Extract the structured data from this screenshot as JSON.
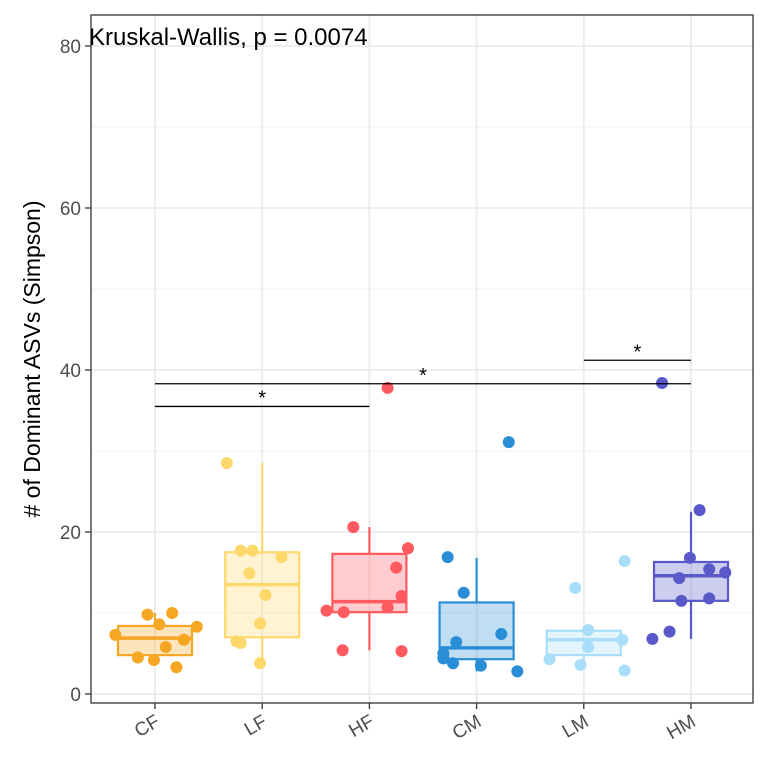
{
  "chart_data": {
    "type": "box",
    "title": "",
    "annotation": "Kruskal-Wallis, p = 0.0074",
    "xlabel": "",
    "ylabel": "# of Dominant ASVs (Simpson)",
    "ylim": [
      -1,
      84
    ],
    "yticks": [
      0,
      20,
      40,
      60,
      80
    ],
    "grid": true,
    "legend": "none",
    "categories": [
      "CF",
      "LF",
      "HF",
      "CM",
      "LM",
      "HM"
    ],
    "series": [
      {
        "name": "CF",
        "color": "#F5A623",
        "box": {
          "min": 4.2,
          "q1": 4.8,
          "median": 6.9,
          "q3": 8.4,
          "max": 10
        },
        "points": [
          {
            "dx": -0.37,
            "y": 7.3
          },
          {
            "dx": -0.07,
            "y": 9.8
          },
          {
            "dx": 0.04,
            "y": 8.6
          },
          {
            "dx": 0.16,
            "y": 10
          },
          {
            "dx": 0.27,
            "y": 6.7
          },
          {
            "dx": 0.39,
            "y": 8.3
          },
          {
            "dx": -0.16,
            "y": 4.5
          },
          {
            "dx": -0.01,
            "y": 4.2
          },
          {
            "dx": 0.1,
            "y": 5.8
          },
          {
            "dx": 0.2,
            "y": 3.3
          }
        ]
      },
      {
        "name": "LF",
        "color": "#FFD86B",
        "box": {
          "min": 3.8,
          "q1": 7,
          "median": 13.5,
          "q3": 17.5,
          "max": 28.5
        },
        "points": [
          {
            "dx": -0.33,
            "y": 28.5
          },
          {
            "dx": -0.2,
            "y": 17.7
          },
          {
            "dx": -0.09,
            "y": 17.7
          },
          {
            "dx": 0.18,
            "y": 16.9
          },
          {
            "dx": -0.12,
            "y": 14.9
          },
          {
            "dx": 0.03,
            "y": 12.2
          },
          {
            "dx": -0.02,
            "y": 8.7
          },
          {
            "dx": -0.24,
            "y": 6.5
          },
          {
            "dx": -0.2,
            "y": 6.3
          },
          {
            "dx": -0.02,
            "y": 3.8
          }
        ]
      },
      {
        "name": "HF",
        "color": "#FF5A5F",
        "box": {
          "min": 5.4,
          "q1": 10.1,
          "median": 11.4,
          "q3": 17.3,
          "max": 20.6
        },
        "points": [
          {
            "dx": 0.17,
            "y": 37.8
          },
          {
            "dx": -0.15,
            "y": 20.6
          },
          {
            "dx": 0.36,
            "y": 18
          },
          {
            "dx": 0.25,
            "y": 15.6
          },
          {
            "dx": 0.3,
            "y": 12.1
          },
          {
            "dx": 0.17,
            "y": 10.7
          },
          {
            "dx": -0.4,
            "y": 10.3
          },
          {
            "dx": -0.24,
            "y": 10.1
          },
          {
            "dx": -0.25,
            "y": 5.4
          },
          {
            "dx": 0.3,
            "y": 5.3
          }
        ]
      },
      {
        "name": "CM",
        "color": "#2A8ED6",
        "box": {
          "min": 2.8,
          "q1": 4.3,
          "median": 5.7,
          "q3": 11.3,
          "max": 16.8
        },
        "points": [
          {
            "dx": 0.3,
            "y": 31.1
          },
          {
            "dx": -0.27,
            "y": 16.9
          },
          {
            "dx": -0.12,
            "y": 12.5
          },
          {
            "dx": 0.23,
            "y": 7.4
          },
          {
            "dx": -0.19,
            "y": 6.4
          },
          {
            "dx": -0.31,
            "y": 5
          },
          {
            "dx": -0.31,
            "y": 4.4
          },
          {
            "dx": -0.22,
            "y": 3.8
          },
          {
            "dx": 0.04,
            "y": 3.5
          },
          {
            "dx": 0.38,
            "y": 2.8
          }
        ]
      },
      {
        "name": "LM",
        "color": "#A9DEFA",
        "box": {
          "min": 3.7,
          "q1": 4.8,
          "median": 6.7,
          "q3": 7.8,
          "max": 8
        },
        "points": [
          {
            "dx": 0.38,
            "y": 16.4
          },
          {
            "dx": -0.08,
            "y": 13.1
          },
          {
            "dx": 0.04,
            "y": 7.9
          },
          {
            "dx": 0.36,
            "y": 6.7
          },
          {
            "dx": 0.04,
            "y": 5.8
          },
          {
            "dx": -0.32,
            "y": 4.3
          },
          {
            "dx": -0.03,
            "y": 3.6
          },
          {
            "dx": 0.38,
            "y": 2.9
          }
        ]
      },
      {
        "name": "HM",
        "color": "#5A59C9",
        "box": {
          "min": 6.8,
          "q1": 11.5,
          "median": 14.6,
          "q3": 16.3,
          "max": 22.5
        },
        "points": [
          {
            "dx": -0.27,
            "y": 38.4
          },
          {
            "dx": 0.08,
            "y": 22.7
          },
          {
            "dx": -0.01,
            "y": 16.8
          },
          {
            "dx": 0.17,
            "y": 15.4
          },
          {
            "dx": 0.32,
            "y": 15
          },
          {
            "dx": -0.11,
            "y": 14.3
          },
          {
            "dx": -0.09,
            "y": 11.5
          },
          {
            "dx": 0.17,
            "y": 11.8
          },
          {
            "dx": -0.2,
            "y": 7.7
          },
          {
            "dx": -0.36,
            "y": 6.8
          }
        ]
      }
    ],
    "comparisons": [
      {
        "from": "CF",
        "to": "HF",
        "y": 35.5,
        "label": "*"
      },
      {
        "from": "CF",
        "to": "HM",
        "y": 38.3,
        "label": "*"
      },
      {
        "from": "LM",
        "to": "HM",
        "y": 41.2,
        "label": "*"
      }
    ]
  }
}
